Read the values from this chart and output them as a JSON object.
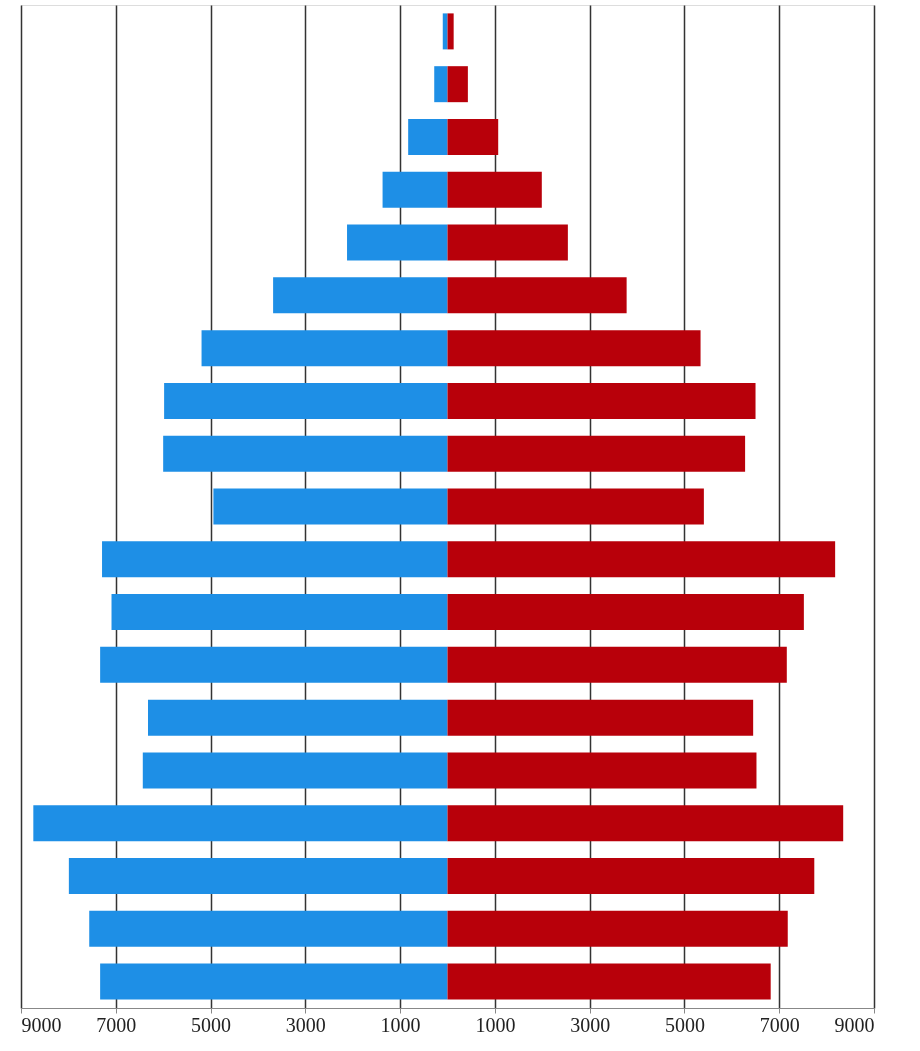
{
  "chart_data": {
    "type": "bar",
    "orientation": "horizontal",
    "categories": [
      null,
      null,
      null,
      null,
      null,
      null,
      null,
      null,
      null,
      null,
      null,
      null,
      null,
      null,
      null,
      null,
      null,
      null,
      null
    ],
    "series": [
      {
        "color": "#1e8fe6",
        "values": [
          -100,
          -280,
          -830,
          -1370,
          -2120,
          -3680,
          -5190,
          -5980,
          -6000,
          -4940,
          -7290,
          -7090,
          -7330,
          -6320,
          -6430,
          -8740,
          -7990,
          -7560,
          -7330
        ]
      },
      {
        "color": "#b8000a",
        "values": [
          130,
          430,
          1070,
          1990,
          2540,
          3780,
          5340,
          6500,
          6280,
          5410,
          8180,
          7520,
          7160,
          6450,
          6520,
          8350,
          7740,
          7180,
          6820
        ]
      }
    ],
    "xlim": [
      -9000,
      9000
    ],
    "xticks": [
      {
        "value": -9000,
        "label": "9000"
      },
      {
        "value": -7000,
        "label": "7000"
      },
      {
        "value": -5000,
        "label": "5000"
      },
      {
        "value": -3000,
        "label": "3000"
      },
      {
        "value": -1000,
        "label": "1000"
      },
      1000,
      3000,
      5000,
      7000,
      9000
    ],
    "stacked": true,
    "grid": "x",
    "tick_labels": "x"
  }
}
